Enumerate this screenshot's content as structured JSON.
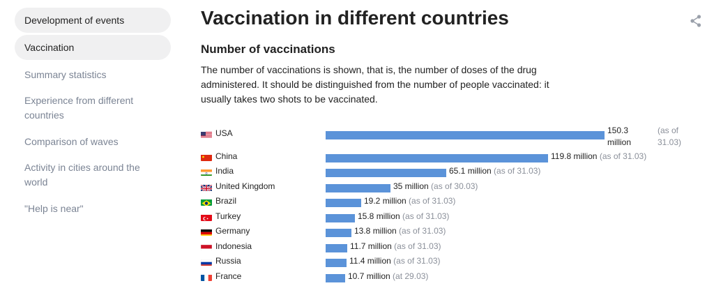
{
  "sidebar": {
    "items": [
      {
        "label": "Development of events",
        "active": false
      },
      {
        "label": "Vaccination",
        "active": true
      },
      {
        "label": "Summary statistics",
        "active": false
      },
      {
        "label": "Experience from different countries",
        "active": false
      },
      {
        "label": "Comparison of waves",
        "active": false
      },
      {
        "label": "Activity in cities around the world",
        "active": false
      },
      {
        "label": "\"Help is near\"",
        "active": false
      }
    ]
  },
  "page": {
    "title": "Vaccination in different countries",
    "subtitle": "Number of vaccinations",
    "description": "The number of vaccinations is shown, that is, the number of doses of the drug administered. It should be distinguished from the number of people vaccinated: it usually takes two shots to be vaccinated."
  },
  "chart_data": {
    "type": "bar",
    "orientation": "horizontal",
    "unit": "million",
    "bar_color": "#5b93d9",
    "rows": [
      {
        "country": "USA",
        "flag": "us-flag",
        "value": 150.3,
        "label": "150.3 million",
        "asof": "(as of 31.03)"
      },
      {
        "country": "China",
        "flag": "china-flag",
        "value": 119.8,
        "label": "119.8 million",
        "asof": "(as of 31.03)"
      },
      {
        "country": "India",
        "flag": "india-flag",
        "value": 65.1,
        "label": "65.1 million",
        "asof": "(as of 31.03)"
      },
      {
        "country": "United Kingdom",
        "flag": "uk-flag",
        "value": 35,
        "label": "35 million",
        "asof": "(as of 30.03)"
      },
      {
        "country": "Brazil",
        "flag": "brazil-flag",
        "value": 19.2,
        "label": "19.2 million",
        "asof": "(as of 31.03)"
      },
      {
        "country": "Turkey",
        "flag": "turkey-flag",
        "value": 15.8,
        "label": "15.8 million",
        "asof": "(as of 31.03)"
      },
      {
        "country": "Germany",
        "flag": "germany-flag",
        "value": 13.8,
        "label": "13.8 million",
        "asof": "(as of 31.03)"
      },
      {
        "country": "Indonesia",
        "flag": "indonesia-flag",
        "value": 11.7,
        "label": "11.7 million",
        "asof": "(as of 31.03)"
      },
      {
        "country": "Russia",
        "flag": "russia-flag",
        "value": 11.4,
        "label": "11.4 million",
        "asof": "(as of 31.03)"
      },
      {
        "country": "France",
        "flag": "france-flag",
        "value": 10.7,
        "label": "10.7 million",
        "asof": "(at 29.03)"
      }
    ]
  },
  "icons": {
    "share": "share-icon"
  }
}
